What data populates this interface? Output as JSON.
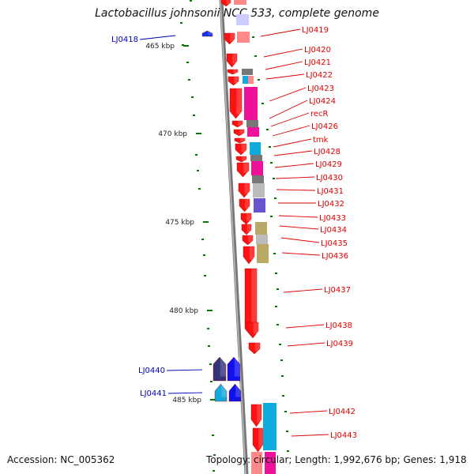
{
  "title": "Lactobacillus johnsonii NCC 533, complete genome",
  "footer": {
    "accession": "Accession: NC_005362",
    "summary": "Topology: circular; Length: 1,992,676 bp; Genes: 1,918"
  },
  "colors": {
    "forward_label": "#dd0000",
    "reverse_label": "#0000bb",
    "scale_tick": "#007700",
    "backbone": "#888888"
  },
  "scale_marks": [
    "465 kbp",
    "470 kbp",
    "475 kbp",
    "480 kbp",
    "485 kbp"
  ],
  "genes_forward": [
    "LJ0419",
    "LJ0420",
    "LJ0421",
    "LJ0422",
    "LJ0423",
    "LJ0424",
    "recR",
    "LJ0426",
    "tmk",
    "LJ0428",
    "LJ0429",
    "LJ0430",
    "LJ0431",
    "LJ0432",
    "LJ0433",
    "LJ0434",
    "LJ0435",
    "LJ0436",
    "LJ0437",
    "LJ0438",
    "LJ0439",
    "LJ0442",
    "LJ0443"
  ],
  "genes_reverse": [
    "LJ0418",
    "LJ0440",
    "LJ0441"
  ]
}
